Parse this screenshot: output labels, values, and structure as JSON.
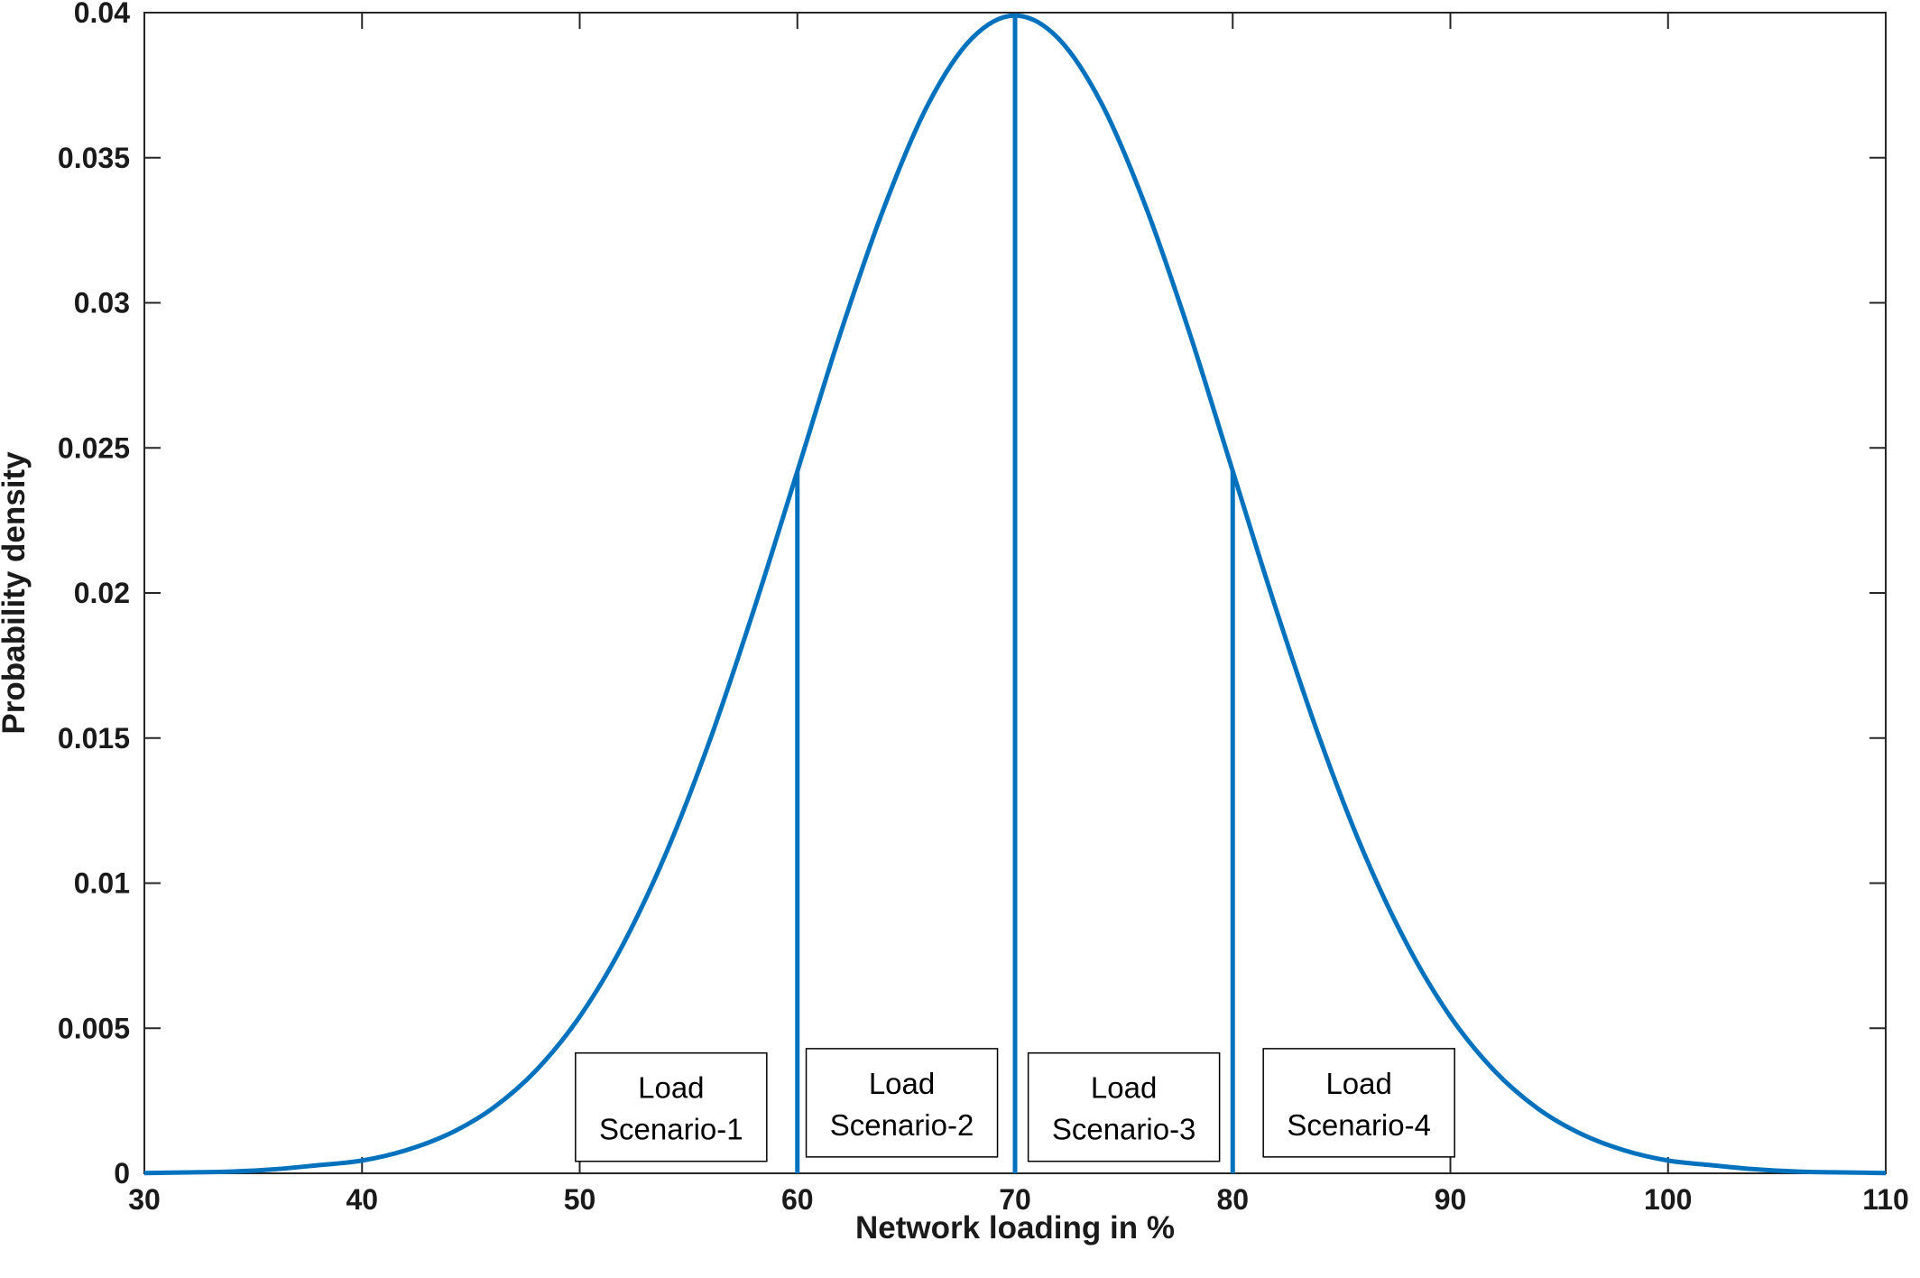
{
  "chart_data": {
    "type": "line",
    "title": "",
    "xlabel": "Network loading in %",
    "ylabel": "Probability density",
    "xlim": [
      30,
      110
    ],
    "ylim": [
      0,
      0.04
    ],
    "xticks": [
      30,
      40,
      50,
      60,
      70,
      80,
      90,
      100,
      110
    ],
    "xtick_labels": [
      "30",
      "40",
      "50",
      "60",
      "70",
      "80",
      "90",
      "100",
      "110"
    ],
    "yticks": [
      0,
      0.005,
      0.01,
      0.015,
      0.02,
      0.025,
      0.03,
      0.035,
      0.04
    ],
    "ytick_labels": [
      "0",
      "0.005",
      "0.01",
      "0.015",
      "0.02",
      "0.025",
      "0.03",
      "0.035",
      "0.04"
    ],
    "grid": false,
    "legend": "none",
    "series": [
      {
        "color": "#0072BD",
        "x": [
          30,
          32,
          34,
          36,
          38,
          40,
          42,
          44,
          46,
          48,
          50,
          52,
          54,
          56,
          58,
          60,
          62,
          64,
          66,
          68,
          70,
          72,
          74,
          76,
          78,
          80,
          82,
          84,
          86,
          88,
          90,
          92,
          94,
          96,
          98,
          100,
          102,
          104,
          106,
          108,
          110
        ],
        "y": [
          1e-05,
          3e-05,
          6e-05,
          0.00014,
          0.00028,
          0.00044,
          0.00079,
          0.00136,
          0.00224,
          0.00355,
          0.0054,
          0.0079,
          0.01109,
          0.01497,
          0.01942,
          0.0242,
          0.029,
          0.03332,
          0.03683,
          0.0391,
          0.0399,
          0.0391,
          0.03683,
          0.03332,
          0.029,
          0.0242,
          0.01942,
          0.01497,
          0.01109,
          0.0079,
          0.0054,
          0.00355,
          0.00224,
          0.00136,
          0.00079,
          0.00044,
          0.00028,
          0.00014,
          6e-05,
          3e-05,
          1e-05
        ]
      }
    ],
    "vertical_lines": [
      {
        "x": 60,
        "y_top": 0.0242,
        "color": "#0072BD"
      },
      {
        "x": 70,
        "y_top": 0.0399,
        "color": "#0072BD"
      },
      {
        "x": 80,
        "y_top": 0.0242,
        "color": "#0072BD"
      }
    ],
    "annotations": [
      {
        "line1": "Load",
        "line2": "Scenario-1",
        "x_center": 54.2,
        "y_center": 0.00228
      },
      {
        "line1": "Load",
        "line2": "Scenario-2",
        "x_center": 64.8,
        "y_center": 0.00243
      },
      {
        "line1": "Load",
        "line2": "Scenario-3",
        "x_center": 75.0,
        "y_center": 0.00228
      },
      {
        "line1": "Load",
        "line2": "Scenario-4",
        "x_center": 85.8,
        "y_center": 0.00243
      }
    ]
  }
}
